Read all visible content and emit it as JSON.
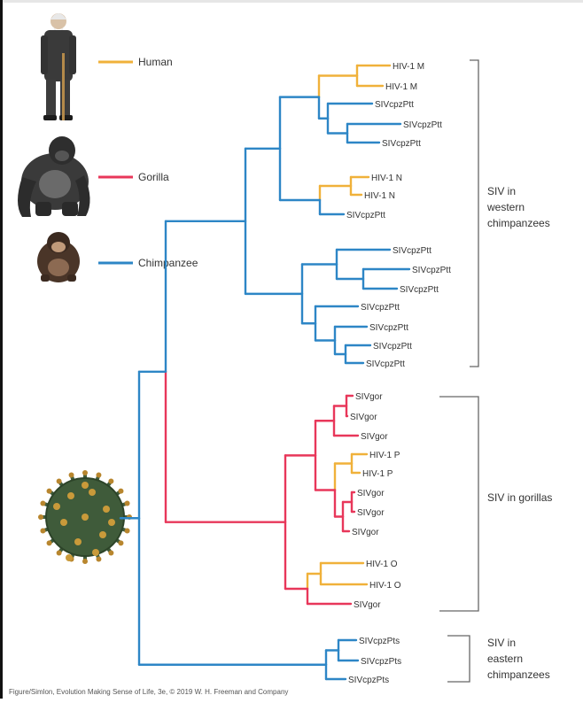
{
  "colors": {
    "human": "#f0b13a",
    "gorilla": "#e8375a",
    "chimpanzee": "#2d86c6",
    "bracket": "#666666",
    "text": "#333333"
  },
  "legend": [
    {
      "label": "Human",
      "color_key": "human",
      "icon": "human-figure-icon"
    },
    {
      "label": "Gorilla",
      "color_key": "gorilla",
      "icon": "gorilla-icon"
    },
    {
      "label": "Chimpanzee",
      "color_key": "chimpanzee",
      "icon": "chimpanzee-icon"
    }
  ],
  "root_icon": "virus-particle-icon",
  "tip_labels": [
    "HIV-1 M",
    "HIV-1 M",
    "SIVcpzPtt",
    "SIVcpzPtt",
    "SIVcpzPtt",
    "HIV-1 N",
    "HIV-1 N",
    "SIVcpzPtt",
    "SIVcpzPtt",
    "SIVcpzPtt",
    "SIVcpzPtt",
    "SIVcpzPtt",
    "SIVcpzPtt",
    "SIVcpzPtt",
    "SIVcpzPtt",
    "SIVgor",
    "SIVgor",
    "SIVgor",
    "HIV-1 P",
    "HIV-1 P",
    "SIVgor",
    "SIVgor",
    "SIVgor",
    "HIV-1 O",
    "HIV-1 O",
    "SIVgor",
    "SIVcpzPts",
    "SIVcpzPts",
    "SIVcpzPts"
  ],
  "groups": [
    {
      "label_lines": [
        "SIV in",
        "western",
        "chimpanzees"
      ]
    },
    {
      "label_lines": [
        "SIV in gorillas"
      ]
    },
    {
      "label_lines": [
        "SIV in",
        "eastern",
        "chimpanzees"
      ]
    }
  ],
  "caption": "Figure/Simlon, Evolution Making Sense of Life, 3e, © 2019 W. H. Freeman and Company"
}
